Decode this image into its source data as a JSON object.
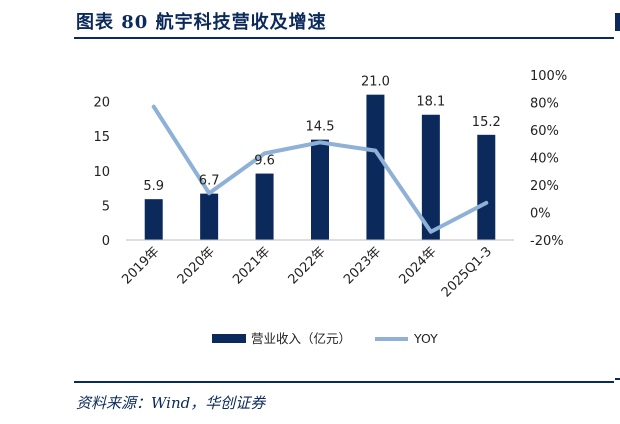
{
  "header": {
    "title": "图表 80  航宇科技营收及增速"
  },
  "footer": {
    "source": "资料来源：Wind，华创证券"
  },
  "chart_data": {
    "type": "bar",
    "categories": [
      "2019年",
      "2020年",
      "2021年",
      "2022年",
      "2023年",
      "2024年",
      "2025Q1-3"
    ],
    "series": [
      {
        "name": "营业收入（亿元）",
        "type": "bar",
        "axis": "left",
        "values": [
          5.9,
          6.7,
          9.6,
          14.5,
          21.0,
          18.1,
          15.2
        ],
        "color": "#0b2a5b"
      },
      {
        "name": "YOY",
        "type": "line",
        "axis": "right",
        "values": [
          77,
          14,
          43,
          51,
          45,
          -14,
          7
        ],
        "color": "#8fb1d8"
      }
    ],
    "data_labels": [
      "5.9",
      "6.7",
      "9.6",
      "14.5",
      "21.0",
      "18.1",
      "15.2"
    ],
    "left_ticks": [
      "0",
      "5",
      "10",
      "15",
      "20"
    ],
    "right_ticks": [
      "-20%",
      "0%",
      "20%",
      "40%",
      "60%",
      "80%",
      "100%"
    ],
    "ylim_left": [
      0,
      25
    ],
    "ylim_right": [
      -20,
      100
    ],
    "legend_position": "bottom",
    "grid": false
  }
}
